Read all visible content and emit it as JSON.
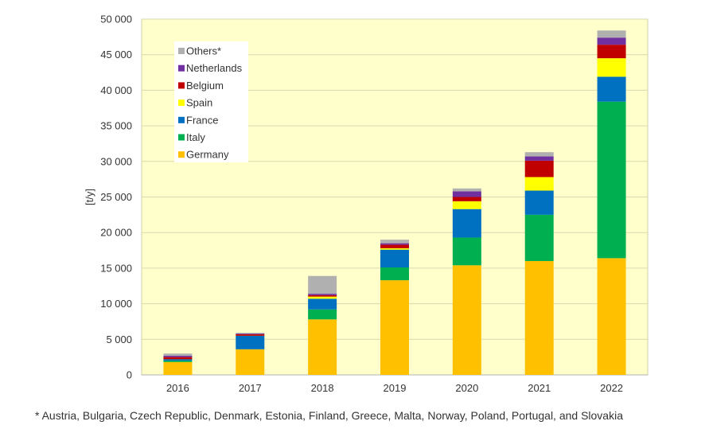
{
  "chart_data": {
    "type": "bar",
    "stacked": true,
    "ylabel": "[t/y]",
    "xlabel": "",
    "title": "",
    "ylim": [
      0,
      50000
    ],
    "yticks": [
      0,
      5000,
      10000,
      15000,
      20000,
      25000,
      30000,
      35000,
      40000,
      45000,
      50000
    ],
    "ytick_labels": [
      "0",
      "5 000",
      "10 000",
      "15 000",
      "20 000",
      "25 000",
      "30 000",
      "35 000",
      "40 000",
      "45 000",
      "50 000"
    ],
    "grid": true,
    "legend_position": "top-left",
    "plot_background": "#ffffcc",
    "categories": [
      "2016",
      "2017",
      "2018",
      "2019",
      "2020",
      "2021",
      "2022"
    ],
    "series": [
      {
        "name": "Germany",
        "color": "#ffc000",
        "values": [
          1800,
          3600,
          7800,
          13300,
          15400,
          16000,
          16400
        ]
      },
      {
        "name": "Italy",
        "color": "#00b050",
        "values": [
          200,
          0,
          1400,
          1800,
          3900,
          6500,
          22000
        ]
      },
      {
        "name": "France",
        "color": "#0070c0",
        "values": [
          200,
          1900,
          1500,
          2500,
          4000,
          3400,
          3500
        ]
      },
      {
        "name": "Spain",
        "color": "#ffff00",
        "values": [
          0,
          0,
          300,
          200,
          1100,
          1900,
          2600
        ]
      },
      {
        "name": "Belgium",
        "color": "#c00000",
        "values": [
          300,
          200,
          200,
          500,
          600,
          2300,
          1900
        ]
      },
      {
        "name": "Netherlands",
        "color": "#7030a0",
        "values": [
          200,
          100,
          200,
          200,
          800,
          600,
          1000
        ]
      },
      {
        "name": "Others*",
        "color": "#b0b0b0",
        "values": [
          300,
          100,
          2500,
          500,
          400,
          600,
          1000
        ]
      }
    ]
  },
  "footnote": "* Austria, Bulgaria, Czech Republic, Denmark, Estonia, Finland, Greece, Malta, Norway, Poland, Portugal, and Slovakia"
}
